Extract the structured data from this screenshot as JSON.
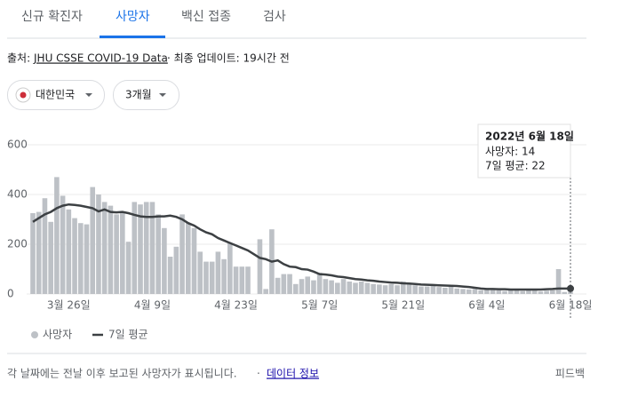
{
  "tabs": [
    "신규 확진자",
    "사망자",
    "백신 접종",
    "검사"
  ],
  "source": {
    "label": "출처:",
    "link": "JHU CSSE COVID-19 Data",
    "update": "· 최종 업데이트: 19시간 전"
  },
  "selectors": [
    "대한민국",
    "3개월"
  ],
  "chart_data": {
    "type": "bar_line",
    "categories": [
      null,
      null,
      null,
      null,
      null,
      null,
      "3월 26일",
      null,
      null,
      null,
      null,
      null,
      null,
      null,
      null,
      null,
      null,
      null,
      null,
      null,
      "4월 9일",
      null,
      null,
      null,
      null,
      null,
      null,
      null,
      null,
      null,
      null,
      null,
      null,
      null,
      "4월 23일",
      null,
      null,
      null,
      null,
      null,
      null,
      null,
      null,
      null,
      null,
      null,
      null,
      null,
      "5월 7일",
      null,
      null,
      null,
      null,
      null,
      null,
      null,
      null,
      null,
      null,
      null,
      null,
      null,
      "5월 21일",
      null,
      null,
      null,
      null,
      null,
      null,
      null,
      null,
      null,
      null,
      null,
      null,
      null,
      "6월 4일",
      null,
      null,
      null,
      null,
      null,
      null,
      null,
      null,
      null,
      null,
      null,
      null,
      null,
      "6월 18일"
    ],
    "series": [
      {
        "name": "사망자",
        "color": "#bdc1c6",
        "values": [
          325,
          330,
          385,
          290,
          470,
          395,
          340,
          305,
          285,
          280,
          430,
          400,
          370,
          355,
          320,
          330,
          210,
          370,
          360,
          370,
          370,
          320,
          265,
          150,
          190,
          320,
          285,
          265,
          170,
          130,
          130,
          170,
          140,
          205,
          110,
          110,
          110,
          0,
          220,
          20,
          260,
          65,
          80,
          80,
          40,
          60,
          70,
          55,
          85,
          60,
          55,
          45,
          60,
          50,
          45,
          50,
          45,
          40,
          38,
          35,
          40,
          35,
          50,
          40,
          35,
          30,
          30,
          32,
          28,
          25,
          30,
          22,
          20,
          18,
          20,
          15,
          22,
          18,
          15,
          12,
          20,
          15,
          12,
          18,
          14,
          10,
          13,
          15,
          100,
          8,
          14
        ]
      },
      {
        "name": "7일 평균",
        "color": "#3c4043",
        "values": [
          290,
          305,
          320,
          330,
          345,
          355,
          360,
          358,
          355,
          350,
          345,
          332,
          340,
          330,
          328,
          330,
          325,
          318,
          312,
          310,
          310,
          312,
          312,
          315,
          310,
          300,
          285,
          275,
          260,
          248,
          240,
          225,
          215,
          205,
          195,
          185,
          175,
          160,
          145,
          140,
          130,
          135,
          120,
          110,
          108,
          100,
          98,
          90,
          80,
          78,
          75,
          70,
          68,
          64,
          60,
          58,
          55,
          53,
          50,
          48,
          46,
          45,
          43,
          42,
          40,
          38,
          37,
          36,
          35,
          34,
          33,
          32,
          30,
          28,
          25,
          22,
          20,
          20,
          19,
          19,
          18,
          18,
          18,
          18,
          18,
          18,
          19,
          20,
          22,
          22,
          22
        ]
      }
    ],
    "ylim": [
      0,
      600
    ],
    "yticks": [
      0,
      200,
      400,
      600
    ],
    "grid": true
  },
  "tooltip": {
    "date": "2022년 6월 18일",
    "lines": [
      "사망자: 14",
      "7일 평균: 22"
    ]
  },
  "footer": {
    "note": "각 날짜에는 전날 이후 보고된 사망자가 표시됩니다.",
    "sep": "·",
    "link": "데이터 정보",
    "feedback": "피드백"
  }
}
